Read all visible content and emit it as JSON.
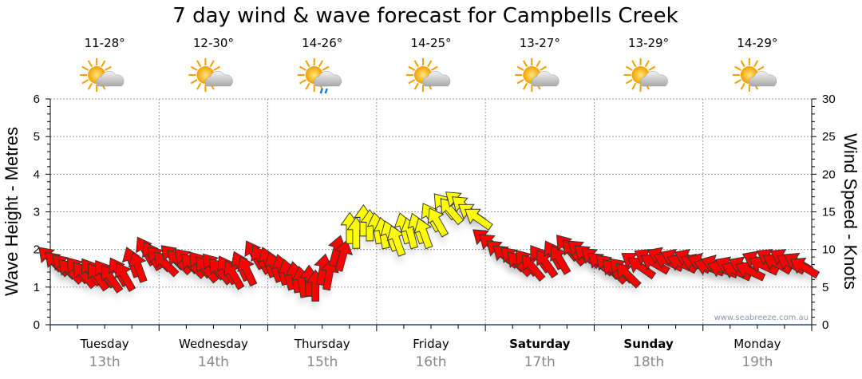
{
  "chart_data": {
    "type": "scatter",
    "title": "7 day wind & wave forecast for Campbells Creek",
    "ylabel": "Wave Height - Metres",
    "y2label": "Wind Speed - Knots",
    "ylim": [
      0,
      6
    ],
    "y2lim": [
      0,
      30
    ],
    "yticks": [
      "0",
      "1",
      "2",
      "3",
      "4",
      "5",
      "6"
    ],
    "y2ticks": [
      "0",
      "5",
      "10",
      "15",
      "20",
      "25",
      "30"
    ],
    "days": [
      {
        "day": "Tuesday",
        "date": "13th",
        "temp": "11-28°",
        "icon": "sun-cloud-icon",
        "weekend": false
      },
      {
        "day": "Wednesday",
        "date": "14th",
        "temp": "12-30°",
        "icon": "sun-cloud-icon",
        "weekend": false
      },
      {
        "day": "Thursday",
        "date": "15th",
        "temp": "14-26°",
        "icon": "sun-cloud-rain-icon",
        "weekend": false
      },
      {
        "day": "Friday",
        "date": "16th",
        "temp": "14-25°",
        "icon": "sun-cloud-icon",
        "weekend": false
      },
      {
        "day": "Saturday",
        "date": "17th",
        "temp": "13-27°",
        "icon": "sun-cloud-icon",
        "weekend": true
      },
      {
        "day": "Sunday",
        "date": "18th",
        "temp": "13-29°",
        "icon": "sun-cloud-icon",
        "weekend": true
      },
      {
        "day": "Monday",
        "date": "19th",
        "temp": "14-29°",
        "icon": "sun-cloud-icon",
        "weekend": false
      }
    ],
    "interval_hours": 3,
    "wave_height": [
      1.7,
      1.5,
      1.4,
      1.35,
      1.3,
      1.35,
      1.6,
      1.9,
      1.7,
      1.75,
      1.65,
      1.55,
      1.5,
      1.4,
      1.5,
      1.8,
      1.6,
      1.4,
      1.2,
      1.1,
      1.4,
      1.9,
      2.5,
      2.7,
      2.5,
      2.3,
      2.5,
      2.5,
      2.8,
      3.1,
      3.2,
      2.9,
      2.2,
      1.9,
      1.7,
      1.6,
      1.7,
      1.8,
      2.0,
      1.9,
      1.7,
      1.5,
      1.4,
      1.6,
      1.7,
      1.75,
      1.7,
      1.7,
      1.6,
      1.55,
      1.5,
      1.5,
      1.65,
      1.7,
      1.7,
      1.6
    ],
    "wind_speed": [
      9,
      8,
      8,
      7,
      7,
      8,
      9,
      10,
      9,
      9,
      8,
      8,
      8,
      7,
      8,
      9,
      8,
      7,
      6,
      6,
      8,
      11,
      14,
      15,
      14,
      13,
      14,
      14,
      15,
      16,
      17,
      15,
      11,
      10,
      9,
      8,
      9,
      10,
      11,
      10,
      9,
      8,
      7,
      8,
      9,
      9,
      9,
      9,
      8,
      8,
      8,
      8,
      9,
      9,
      9,
      8
    ],
    "wind_dir_deg": [
      -45,
      -45,
      -40,
      -35,
      -35,
      -30,
      -20,
      -30,
      -45,
      -45,
      -45,
      -40,
      -40,
      -30,
      -25,
      -30,
      -20,
      -15,
      -10,
      0,
      10,
      15,
      0,
      0,
      -10,
      -20,
      -15,
      -20,
      -30,
      -40,
      -50,
      -55,
      -50,
      -50,
      -45,
      -40,
      -35,
      -30,
      -40,
      -50,
      -50,
      -45,
      -45,
      -55,
      -60,
      -65,
      -65,
      -65,
      -70,
      -70,
      -65,
      -65,
      -65,
      -60,
      -60,
      -60
    ],
    "colors": {
      "calm": "#ff0000",
      "moderate": "#ffff00"
    },
    "moderate_threshold_knots": 12,
    "watermark": "www.seabreeze.com.au"
  }
}
